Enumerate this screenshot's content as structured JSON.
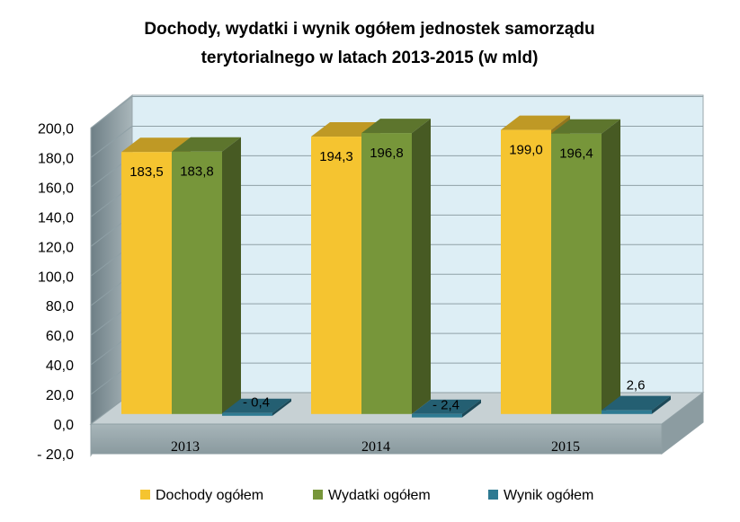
{
  "chart_data": {
    "type": "bar",
    "title": "Dochody,  wydatki i wynik ogółem jednostek samorządu terytorialnego w latach 2013-2015 (w mld)",
    "title_lines": [
      "Dochody,  wydatki i wynik ogółem jednostek samorządu",
      "terytorialnego w latach 2013-2015 (w mld)"
    ],
    "categories": [
      "2013",
      "2014",
      "2015"
    ],
    "series": [
      {
        "name": "Dochody ogółem",
        "values": [
          183.5,
          194.3,
          199.0
        ],
        "labels": [
          "183,5",
          "194,3",
          "199,0"
        ],
        "color": "#F5C430"
      },
      {
        "name": "Wydatki  ogółem",
        "values": [
          183.8,
          196.8,
          196.4
        ],
        "labels": [
          "183,8",
          "196,8",
          "196,4"
        ],
        "color": "#77963A"
      },
      {
        "name": "Wynik ogółem",
        "values": [
          -0.4,
          -2.4,
          2.6
        ],
        "labels": [
          "- 0,4",
          "- 2,4",
          "2,6"
        ],
        "color": "#2E7A92"
      }
    ],
    "y_ticks": [
      "200,0",
      "180,0",
      "160,0",
      "140,0",
      "120,0",
      "100,0",
      "80,0",
      "60,0",
      "40,0",
      "20,0",
      "0,0",
      "- 20,0"
    ],
    "ylim": [
      -20,
      200
    ],
    "grid": true,
    "legend_position": "bottom",
    "style": "3d-clustered-column"
  }
}
